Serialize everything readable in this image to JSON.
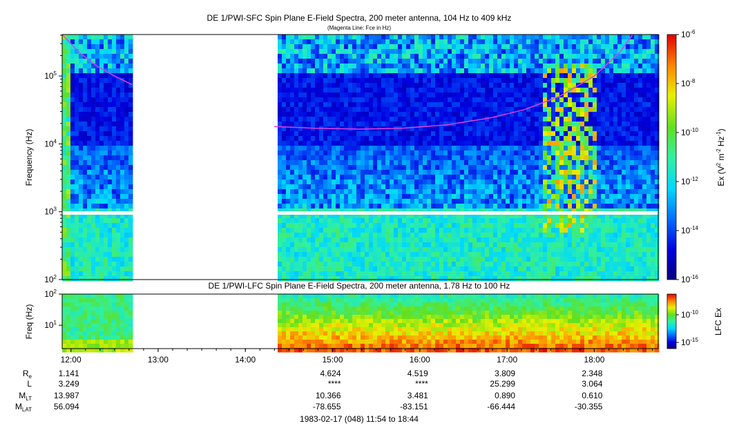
{
  "chart_data": [
    {
      "type": "heatmap",
      "title": "DE 1/PWI-SFC  Spin Plane E-Field Spectra, 200 meter antenna, 104 Hz to 409 kHz",
      "subtitle": "(Magenta Line: Fce in Hz)",
      "ylabel": "Frequency (Hz)",
      "yscale": "log",
      "ylim": [
        100,
        409000
      ],
      "yticks": [
        {
          "label": "10",
          "sup": "2"
        },
        {
          "label": "10",
          "sup": "3"
        },
        {
          "label": "10",
          "sup": "4"
        },
        {
          "label": "10",
          "sup": "5"
        }
      ],
      "colorbar": {
        "label": "Ex (V",
        "label_sup1": "2",
        "label_mid": " m",
        "label_sup2": "-2",
        "label_mid2": " Hz",
        "label_sup3": "-1",
        "label_end": ")",
        "scale": "log",
        "range": [
          1e-16,
          1e-06
        ],
        "ticks": [
          {
            "label": "10",
            "sup": "-6"
          },
          {
            "label": "10",
            "sup": "-8"
          },
          {
            "label": "10",
            "sup": "-10"
          },
          {
            "label": "10",
            "sup": "-12"
          },
          {
            "label": "10",
            "sup": "-14"
          },
          {
            "label": "10",
            "sup": "-16"
          }
        ]
      },
      "data_gap_utc": [
        "12:42",
        "14:20"
      ],
      "fce_line": {
        "color": "#e040e0",
        "segment1": {
          "time": [
            11.9,
            12.1,
            12.3,
            12.5,
            12.7
          ],
          "hz": [
            409000,
            220000,
            140000,
            100000,
            75000
          ]
        },
        "segment2": {
          "time": [
            14.33,
            14.8,
            15.3,
            15.8,
            16.3,
            16.8,
            17.2,
            17.6,
            18.0,
            18.3,
            18.44
          ],
          "hz": [
            18000,
            17000,
            16500,
            17000,
            19000,
            24000,
            32000,
            50000,
            100000,
            230000,
            409000
          ]
        }
      }
    },
    {
      "type": "heatmap",
      "title": "DE 1/PWI-LFC  Spin Plane E-Field Spectra, 200 meter antenna, 1.78 Hz to 100 Hz",
      "ylabel": "Freq (Hz)",
      "yscale": "log",
      "ylim": [
        1.78,
        100
      ],
      "yticks": [
        {
          "label": "10",
          "sup": "1"
        },
        {
          "label": "10",
          "sup": "2"
        }
      ],
      "colorbar": {
        "label": "LFC Ex",
        "scale": "log",
        "ticks": [
          {
            "label": "10",
            "sup": "-10"
          },
          {
            "label": "10",
            "sup": "-15"
          }
        ]
      },
      "data_gap_utc": [
        "12:42",
        "14:20"
      ]
    }
  ],
  "x_axis": {
    "ticks": [
      "12:00",
      "13:00",
      "14:00",
      "15:00",
      "16:00",
      "17:00",
      "18:00"
    ],
    "range_hours": [
      11.9,
      18.733
    ]
  },
  "ephemeris": {
    "rows": [
      {
        "label": "R",
        "sub": "e",
        "values": [
          "1.141",
          "4.624",
          "4.519",
          "3.809",
          "2.348"
        ]
      },
      {
        "label": "L",
        "sub": "",
        "values": [
          "3.249",
          "****",
          "****",
          "25.299",
          "3.064"
        ]
      },
      {
        "label": "M",
        "sub": "LT",
        "values": [
          "13.987",
          "10.366",
          "3.481",
          "0.890",
          "0.610"
        ]
      },
      {
        "label": "M",
        "sub": "LAT",
        "values": [
          "56.094",
          "-78.655",
          "-83.151",
          "-66.444",
          "-30.355"
        ]
      }
    ]
  },
  "footer": "1983-02-17 (048) 11:54 to 18:44"
}
